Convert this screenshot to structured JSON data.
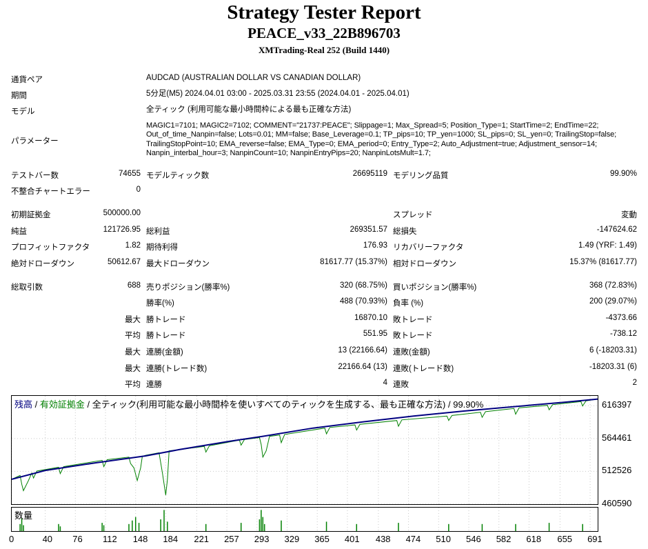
{
  "header": {
    "title": "Strategy Tester Report",
    "ea_name": "PEACE_v33_22B896703",
    "server": "XMTrading-Real 252 (Build 1440)"
  },
  "info": [
    {
      "label": "通貨ペア",
      "value": "AUDCAD (AUSTRALIAN DOLLAR VS CANADIAN DOLLAR)"
    },
    {
      "label": "期間",
      "value": "5分足(M5) 2024.04.01 03:00 - 2025.03.31 23:55 (2024.04.01 - 2025.04.01)"
    },
    {
      "label": "モデル",
      "value": "全ティック (利用可能な最小時間枠による最も正確な方法)"
    },
    {
      "label": "パラメーター",
      "value": "MAGIC1=7101; MAGIC2=7102; COMMENT=\"21737:PEACE\"; Slippage=1; Max_Spread=5; Position_Type=1; StartTime=2; EndTime=22; Out_of_time_Nanpin=false; Lots=0.01; MM=false; Base_Leverage=0.1; TP_pips=10; TP_yen=1000; SL_pips=0; SL_yen=0; TrailingStop=false; TrailingStopPoint=10; EMA_reverse=false; EMA_Type=0; EMA_period=0; Entry_Type=2; Auto_Adjustment=true; Adjustment_sensor=14; Nanpin_interbal_hour=3; NanpinCount=10; NanpinEntryPips=20; NanpinLotsMult=1.7;"
    }
  ],
  "stats": {
    "test_bars_label": "テストバー数",
    "test_bars": "74655",
    "model_ticks_label": "モデルティック数",
    "model_ticks": "26695119",
    "model_quality_label": "モデリング品質",
    "model_quality": "99.90%",
    "mismatch_label": "不整合チャートエラー",
    "mismatch": "0",
    "initial_deposit_label": "初期証拠金",
    "initial_deposit": "500000.00",
    "spread_label": "スプレッド",
    "spread": "変動",
    "net_profit_label": "純益",
    "net_profit": "121726.95",
    "gross_profit_label": "総利益",
    "gross_profit": "269351.57",
    "gross_loss_label": "総損失",
    "gross_loss": "-147624.62",
    "profit_factor_label": "プロフィットファクタ",
    "profit_factor": "1.82",
    "expected_payoff_label": "期待利得",
    "expected_payoff": "176.93",
    "recovery_factor_label": "リカバリーファクタ",
    "recovery_factor": "1.49 (YRF: 1.49)",
    "abs_dd_label": "絶対ドローダウン",
    "abs_dd": "50612.67",
    "max_dd_label": "最大ドローダウン",
    "max_dd": "81617.77 (15.37%)",
    "rel_dd_label": "相対ドローダウン",
    "rel_dd": "15.37% (81617.77)",
    "total_trades_label": "総取引数",
    "total_trades": "688",
    "short_label": "売りポジション(勝率%)",
    "short": "320 (68.75%)",
    "long_label": "買いポジション(勝率%)",
    "long": "368 (72.83%)",
    "win_rate_label": "勝率(%)",
    "win_rate": "488 (70.93%)",
    "loss_rate_label": "負率 (%)",
    "loss_rate": "200 (29.07%)",
    "max_label": "最大",
    "avg_label": "平均",
    "largest_win_label": "勝トレード",
    "largest_win": "16870.10",
    "largest_loss_label": "敗トレード",
    "largest_loss": "-4373.66",
    "avg_win_label": "勝トレード",
    "avg_win": "551.95",
    "avg_loss_label": "敗トレード",
    "avg_loss": "-738.12",
    "max_consec_wins_label": "連勝(金額)",
    "max_consec_wins": "13 (22166.64)",
    "max_consec_losses_label": "連敗(金額)",
    "max_consec_losses": "6 (-18203.31)",
    "max_consec_profit_label": "連勝(トレード数)",
    "max_consec_profit": "22166.64 (13)",
    "max_consec_loss_label": "連敗(トレード数)",
    "max_consec_loss": "-18203.31 (6)",
    "avg_consec_wins_label": "連勝",
    "avg_consec_wins": "4",
    "avg_consec_losses_label": "連敗",
    "avg_consec_losses": "2"
  },
  "legend": {
    "balance": "残高",
    "sep1": " / ",
    "equity": "有効証拠金",
    "sep2": " / 全ティック(利用可能な最小時間枠を使いすべてのティックを生成する、最も正確な方法) / 99.90%"
  },
  "volume_label": "数量",
  "colors": {
    "balance": "#000080",
    "equity": "#008000",
    "volume": "#008000"
  },
  "chart_data": {
    "type": "line",
    "x_ticks": [
      0,
      40,
      76,
      112,
      148,
      184,
      221,
      257,
      293,
      329,
      365,
      401,
      438,
      474,
      510,
      546,
      582,
      618,
      655,
      691
    ],
    "y_ticks": [
      460590,
      512526,
      564461,
      616397
    ],
    "xlim": [
      0,
      700
    ],
    "ylim": [
      460590,
      632000
    ],
    "series": [
      {
        "name": "残高",
        "x": [
          0,
          40,
          100,
          160,
          200,
          260,
          300,
          360,
          420,
          480,
          540,
          600,
          660,
          700
        ],
        "y": [
          500000,
          514000,
          526000,
          537000,
          547000,
          560000,
          568000,
          581000,
          591000,
          600000,
          608000,
          615000,
          622000,
          627000
        ]
      },
      {
        "name": "有効証拠金",
        "x": [
          0,
          10,
          12,
          14,
          20,
          24,
          26,
          30,
          56,
          58,
          62,
          108,
          110,
          114,
          140,
          142,
          146,
          150,
          154,
          156,
          160,
          176,
          180,
          184,
          186,
          188,
          230,
          232,
          236,
          272,
          274,
          278,
          296,
          298,
          300,
          304,
          308,
          320,
          322,
          326,
          374,
          376,
          380,
          410,
          412,
          416,
          460,
          462,
          466,
          520,
          522,
          526,
          560,
          562,
          566,
          600,
          602,
          606,
          640,
          642,
          646,
          680,
          682,
          686,
          700
        ],
        "y": [
          500000,
          506000,
          492000,
          482000,
          498000,
          510000,
          502000,
          513000,
          519000,
          509000,
          520000,
          530000,
          520000,
          531000,
          535000,
          525000,
          518000,
          498000,
          518000,
          536000,
          538000,
          542000,
          510000,
          475000,
          500000,
          545000,
          552000,
          543000,
          553000,
          562000,
          554000,
          563000,
          566000,
          555000,
          535000,
          545000,
          568000,
          570000,
          558000,
          571000,
          581000,
          572000,
          582000,
          586000,
          578000,
          587000,
          593000,
          584000,
          594000,
          600000,
          593000,
          601000,
          606000,
          598000,
          607000,
          612000,
          603000,
          613000,
          617000,
          610000,
          618000,
          623000,
          616000,
          624000,
          627000
        ]
      }
    ],
    "volume": {
      "x": [
        10,
        12,
        14,
        56,
        58,
        108,
        110,
        140,
        144,
        148,
        152,
        178,
        182,
        186,
        232,
        274,
        296,
        298,
        300,
        302,
        322,
        376,
        412,
        462,
        522,
        562,
        602,
        642,
        682
      ],
      "y": [
        0.3,
        0.55,
        0.25,
        0.3,
        0.2,
        0.35,
        0.25,
        0.3,
        0.45,
        0.6,
        0.35,
        0.5,
        0.9,
        0.4,
        0.3,
        0.35,
        0.5,
        0.9,
        0.6,
        0.3,
        0.45,
        0.4,
        0.3,
        0.35,
        0.3,
        0.3,
        0.3,
        0.35,
        0.3
      ]
    }
  }
}
